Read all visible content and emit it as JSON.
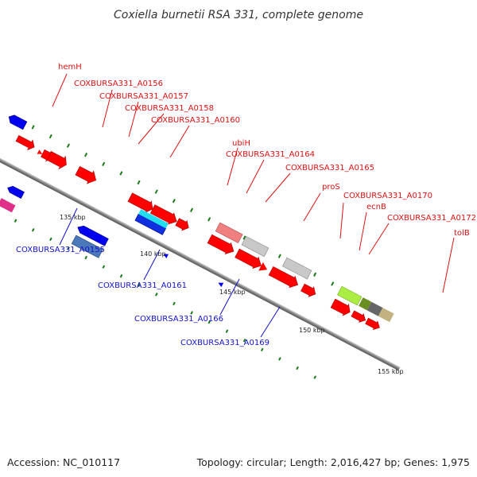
{
  "title": "Coxiella burnetii RSA 331, complete genome",
  "footer": {
    "accession": "Accession: NC_010117",
    "summary": "Topology: circular; Length: 2,016,427 bp; Genes: 1,975"
  },
  "scale_labels": [
    "135 kbp",
    "140 kbp",
    "145 kbp",
    "150 kbp",
    "155 kbp"
  ],
  "genes_forward": [
    "hemH",
    "COXBURSA331_A0156",
    "COXBURSA331_A0157",
    "COXBURSA331_A0158",
    "COXBURSA331_A0160",
    "ubiH",
    "COXBURSA331_A0164",
    "COXBURSA331_A0165",
    "proS",
    "COXBURSA331_A0170",
    "ecnB",
    "COXBURSA331_A0172",
    "tolB"
  ],
  "genes_reverse": [
    "COXBURSA331_A0155",
    "COXBURSA331_A0161",
    "COXBURSA331_A0166",
    "COXBURSA331_A0169"
  ],
  "colors": {
    "forward_strand": "#ff0000",
    "reverse_strand": "#0000ee",
    "forward_label": "#dd1111",
    "reverse_label": "#1111cc",
    "backbone": "#888888",
    "tick": "#1a7a1a"
  }
}
